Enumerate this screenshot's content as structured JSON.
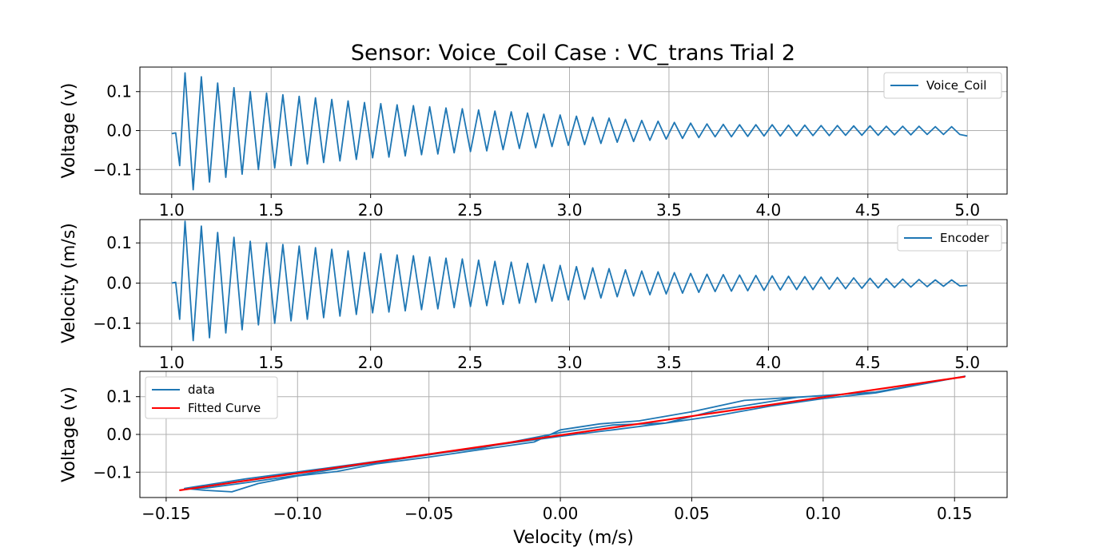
{
  "title": "Sensor: Voice_Coil Case : VC_trans Trial 2",
  "colors": {
    "data": "#1f77b4",
    "fit": "#ff0000",
    "grid": "#b0b0b0"
  },
  "chart_data": [
    {
      "type": "line",
      "xlabel": "",
      "ylabel": "Voltage (v)",
      "xlim": [
        0.84,
        5.2
      ],
      "ylim": [
        -0.163,
        0.163
      ],
      "xticks": [
        "1.0",
        "1.5",
        "2.0",
        "2.5",
        "3.0",
        "3.5",
        "4.0",
        "4.5",
        "5.0"
      ],
      "yticks": [
        "−0.1",
        "0.0",
        "0.1"
      ],
      "grid": true,
      "legend_position": "top-right",
      "series": [
        {
          "name": "Voice_Coil",
          "x": [
            1.0,
            1.02,
            1.04,
            1.067,
            1.108,
            1.149,
            1.19,
            1.231,
            1.272,
            1.313,
            1.354,
            1.395,
            1.436,
            1.477,
            1.518,
            1.559,
            1.6,
            1.641,
            1.682,
            1.723,
            1.764,
            1.805,
            1.846,
            1.887,
            1.928,
            1.969,
            2.01,
            2.051,
            2.092,
            2.133,
            2.174,
            2.215,
            2.256,
            2.297,
            2.338,
            2.379,
            2.42,
            2.461,
            2.502,
            2.543,
            2.584,
            2.625,
            2.666,
            2.707,
            2.748,
            2.789,
            2.83,
            2.871,
            2.912,
            2.953,
            2.994,
            3.035,
            3.076,
            3.117,
            3.158,
            3.199,
            3.24,
            3.281,
            3.322,
            3.363,
            3.404,
            3.445,
            3.486,
            3.527,
            3.568,
            3.609,
            3.65,
            3.691,
            3.732,
            3.773,
            3.814,
            3.855,
            3.896,
            3.937,
            3.978,
            4.019,
            4.06,
            4.101,
            4.142,
            4.183,
            4.224,
            4.265,
            4.306,
            4.347,
            4.388,
            4.429,
            4.47,
            4.511,
            4.552,
            4.593,
            4.634,
            4.675,
            4.716,
            4.757,
            4.798,
            4.839,
            4.88,
            4.921,
            4.962,
            5.0
          ],
          "y": [
            -0.008,
            -0.006,
            -0.09,
            0.148,
            -0.152,
            0.138,
            -0.132,
            0.122,
            -0.12,
            0.11,
            -0.112,
            0.1,
            -0.1,
            0.096,
            -0.096,
            0.092,
            -0.09,
            0.088,
            -0.086,
            0.084,
            -0.082,
            0.08,
            -0.078,
            0.076,
            -0.074,
            0.072,
            -0.07,
            0.069,
            -0.068,
            0.066,
            -0.065,
            0.064,
            -0.062,
            0.061,
            -0.06,
            0.058,
            -0.057,
            0.056,
            -0.054,
            0.053,
            -0.052,
            0.05,
            -0.049,
            0.048,
            -0.046,
            0.045,
            -0.044,
            0.042,
            -0.041,
            0.04,
            -0.038,
            0.037,
            -0.036,
            0.034,
            -0.033,
            0.032,
            -0.03,
            0.029,
            -0.028,
            0.026,
            -0.025,
            0.024,
            -0.022,
            0.021,
            -0.02,
            0.019,
            -0.018,
            0.017,
            -0.016,
            0.016,
            -0.016,
            0.015,
            -0.015,
            0.015,
            -0.014,
            0.015,
            -0.014,
            0.014,
            -0.014,
            0.014,
            -0.013,
            0.013,
            -0.013,
            0.013,
            -0.012,
            0.012,
            -0.012,
            0.012,
            -0.012,
            0.011,
            -0.011,
            0.011,
            -0.011,
            0.011,
            -0.01,
            0.01,
            -0.01,
            0.01,
            -0.01,
            -0.014
          ]
        }
      ]
    },
    {
      "type": "line",
      "xlabel": "",
      "ylabel": "Velocity (m/s)",
      "xlim": [
        0.84,
        5.2
      ],
      "ylim": [
        -0.158,
        0.158
      ],
      "xticks": [
        "1.0",
        "1.5",
        "2.0",
        "2.5",
        "3.0",
        "3.5",
        "4.0",
        "4.5",
        "5.0"
      ],
      "yticks": [
        "−0.1",
        "0.0",
        "0.1"
      ],
      "grid": true,
      "legend_position": "top-right",
      "series": [
        {
          "name": "Encoder",
          "x": [
            1.0,
            1.02,
            1.04,
            1.067,
            1.108,
            1.149,
            1.19,
            1.231,
            1.272,
            1.313,
            1.354,
            1.395,
            1.436,
            1.477,
            1.518,
            1.559,
            1.6,
            1.641,
            1.682,
            1.723,
            1.764,
            1.805,
            1.846,
            1.887,
            1.928,
            1.969,
            2.01,
            2.051,
            2.092,
            2.133,
            2.174,
            2.215,
            2.256,
            2.297,
            2.338,
            2.379,
            2.42,
            2.461,
            2.502,
            2.543,
            2.584,
            2.625,
            2.666,
            2.707,
            2.748,
            2.789,
            2.83,
            2.871,
            2.912,
            2.953,
            2.994,
            3.035,
            3.076,
            3.117,
            3.158,
            3.199,
            3.24,
            3.281,
            3.322,
            3.363,
            3.404,
            3.445,
            3.486,
            3.527,
            3.568,
            3.609,
            3.65,
            3.691,
            3.732,
            3.773,
            3.814,
            3.855,
            3.896,
            3.937,
            3.978,
            4.019,
            4.06,
            4.101,
            4.142,
            4.183,
            4.224,
            4.265,
            4.306,
            4.347,
            4.388,
            4.429,
            4.47,
            4.511,
            4.552,
            4.593,
            4.634,
            4.675,
            4.716,
            4.757,
            4.798,
            4.839,
            4.88,
            4.921,
            4.962,
            5.0
          ],
          "y": [
            0.0,
            0.002,
            -0.09,
            0.154,
            -0.143,
            0.142,
            -0.136,
            0.126,
            -0.124,
            0.114,
            -0.116,
            0.104,
            -0.104,
            0.1,
            -0.1,
            0.096,
            -0.094,
            0.092,
            -0.09,
            0.088,
            -0.086,
            0.084,
            -0.082,
            0.08,
            -0.078,
            0.076,
            -0.074,
            0.073,
            -0.072,
            0.07,
            -0.069,
            0.068,
            -0.066,
            0.065,
            -0.064,
            0.062,
            -0.061,
            0.06,
            -0.058,
            0.057,
            -0.056,
            0.054,
            -0.053,
            0.052,
            -0.05,
            0.049,
            -0.048,
            0.046,
            -0.045,
            0.044,
            -0.042,
            0.041,
            -0.04,
            0.038,
            -0.037,
            0.036,
            -0.034,
            0.033,
            -0.032,
            0.03,
            -0.029,
            0.028,
            -0.027,
            0.026,
            -0.025,
            0.024,
            -0.023,
            0.022,
            -0.021,
            0.021,
            -0.02,
            0.02,
            -0.019,
            0.019,
            -0.018,
            0.018,
            -0.017,
            0.017,
            -0.016,
            0.016,
            -0.016,
            0.015,
            -0.015,
            0.014,
            -0.014,
            0.013,
            -0.013,
            0.012,
            -0.012,
            0.011,
            -0.011,
            0.01,
            -0.01,
            0.009,
            -0.009,
            0.008,
            -0.008,
            0.008,
            -0.007,
            -0.006
          ]
        }
      ]
    },
    {
      "type": "line",
      "xlabel": "Velocity (m/s)",
      "ylabel": "Voltage (v)",
      "xlim": [
        -0.16,
        0.17
      ],
      "ylim": [
        -0.167,
        0.167
      ],
      "xticks": [
        "−0.15",
        "−0.10",
        "−0.05",
        "0.00",
        "0.05",
        "0.10",
        "0.15"
      ],
      "yticks": [
        "−0.1",
        "0.0",
        "0.1"
      ],
      "grid": true,
      "legend_position": "top-left",
      "series": [
        {
          "name": "data",
          "x": [
            -0.143,
            -0.135,
            -0.125,
            -0.115,
            -0.1,
            -0.085,
            -0.07,
            -0.05,
            -0.03,
            -0.01,
            0.0,
            0.015,
            0.03,
            0.05,
            0.07,
            0.1,
            0.12,
            0.154,
            0.12,
            0.1,
            0.08,
            0.06,
            0.04,
            0.02,
            0.0,
            -0.02,
            -0.04,
            -0.06,
            -0.08,
            -0.1,
            -0.12,
            -0.135,
            -0.143,
            -0.12,
            -0.09,
            -0.06,
            -0.03,
            0.0,
            0.02,
            0.04,
            0.06,
            0.09,
            0.12
          ],
          "y": [
            -0.143,
            -0.148,
            -0.152,
            -0.13,
            -0.11,
            -0.098,
            -0.078,
            -0.06,
            -0.04,
            -0.02,
            0.012,
            0.028,
            0.036,
            0.06,
            0.09,
            0.103,
            0.112,
            0.154,
            0.11,
            0.095,
            0.075,
            0.05,
            0.03,
            0.012,
            -0.005,
            -0.024,
            -0.044,
            -0.064,
            -0.085,
            -0.108,
            -0.128,
            -0.142,
            -0.143,
            -0.118,
            -0.09,
            -0.062,
            -0.036,
            0.005,
            0.025,
            0.03,
            0.065,
            0.098,
            0.112
          ]
        },
        {
          "name": "Fitted Curve",
          "x": [
            -0.145,
            0.154
          ],
          "y": [
            -0.148,
            0.153
          ]
        }
      ]
    }
  ],
  "legend_style": {
    "fill": "#ffffff",
    "border": "#cccccc"
  }
}
